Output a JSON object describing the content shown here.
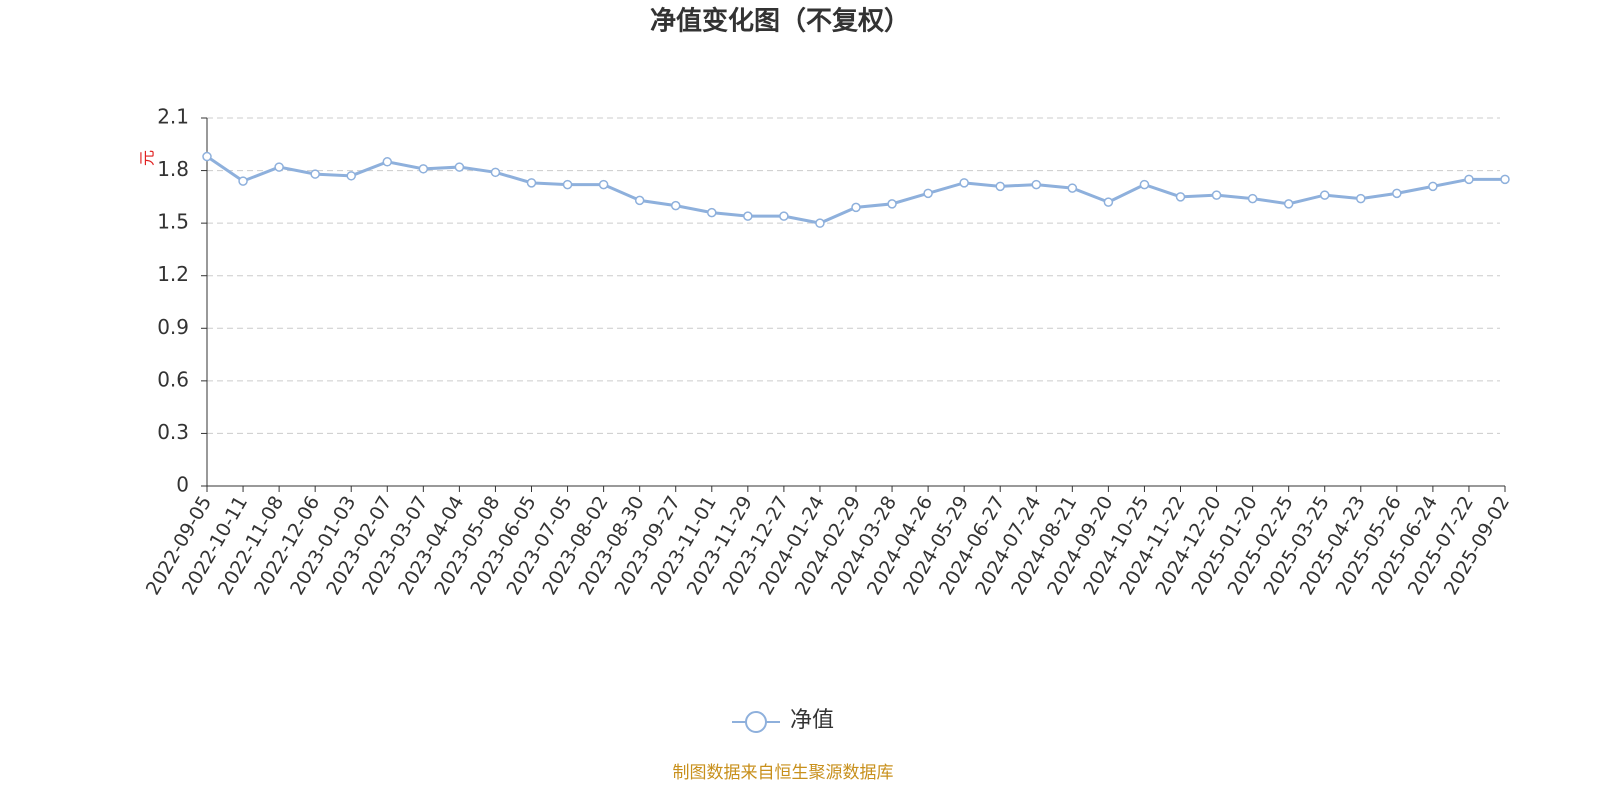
{
  "chart_data": {
    "type": "line",
    "title": "净值变化图（不复权）",
    "y_label": "元",
    "source": "制图数据来自恒生聚源数据库",
    "x": [
      "2022-09-05",
      "2022-10-11",
      "2022-11-08",
      "2022-12-06",
      "2023-01-03",
      "2023-02-07",
      "2023-03-07",
      "2023-04-04",
      "2023-05-08",
      "2023-06-05",
      "2023-07-05",
      "2023-08-02",
      "2023-08-30",
      "2023-09-27",
      "2023-11-01",
      "2023-11-29",
      "2023-12-27",
      "2024-01-24",
      "2024-02-29",
      "2024-03-28",
      "2024-04-26",
      "2024-05-29",
      "2024-06-27",
      "2024-07-24",
      "2024-08-21",
      "2024-09-20",
      "2024-10-25",
      "2024-11-22",
      "2024-12-20",
      "2025-01-20",
      "2025-02-25",
      "2025-03-25",
      "2025-04-23",
      "2025-05-26",
      "2025-06-24",
      "2025-07-22",
      "2025-09-02"
    ],
    "series": [
      {
        "name": "净值",
        "color": "#8eb0dc",
        "values": [
          1.88,
          1.74,
          1.82,
          1.78,
          1.77,
          1.85,
          1.81,
          1.82,
          1.79,
          1.73,
          1.72,
          1.72,
          1.63,
          1.6,
          1.56,
          1.54,
          1.54,
          1.5,
          1.59,
          1.61,
          1.67,
          1.73,
          1.71,
          1.72,
          1.7,
          1.62,
          1.72,
          1.65,
          1.66,
          1.64,
          1.61,
          1.66,
          1.64,
          1.67,
          1.71,
          1.75,
          1.75
        ]
      }
    ],
    "ylim": [
      0,
      2.1
    ],
    "yticks": [
      0,
      0.3,
      0.6,
      0.9,
      1.2,
      1.5,
      1.8,
      2.1
    ],
    "grid": true
  }
}
